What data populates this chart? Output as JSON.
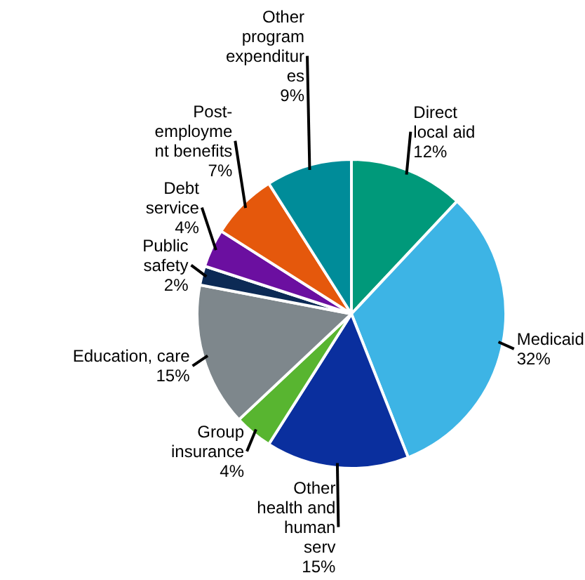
{
  "chart_data": {
    "type": "pie",
    "categories": [
      "Direct\nlocal aid",
      "Medicaid",
      "Other\nhealth and\nhuman\nserv",
      "Group\ninsurance",
      "Education, care",
      "Public\nsafety",
      "Debt\nservice",
      "Post-\nemployme\nnt benefits",
      "Other\nprogram\nexpenditur\nes"
    ],
    "values": [
      12,
      32,
      15,
      4,
      15,
      2,
      4,
      7,
      9
    ],
    "value_labels": [
      "12%",
      "32%",
      "15%",
      "4%",
      "15%",
      "2%",
      "4%",
      "7%",
      "9%"
    ],
    "colors": [
      "#00997a",
      "#3db4e5",
      "#0a2f9e",
      "#58b530",
      "#7e878c",
      "#0c2a55",
      "#6b0fa0",
      "#e5580c",
      "#008c99"
    ]
  }
}
